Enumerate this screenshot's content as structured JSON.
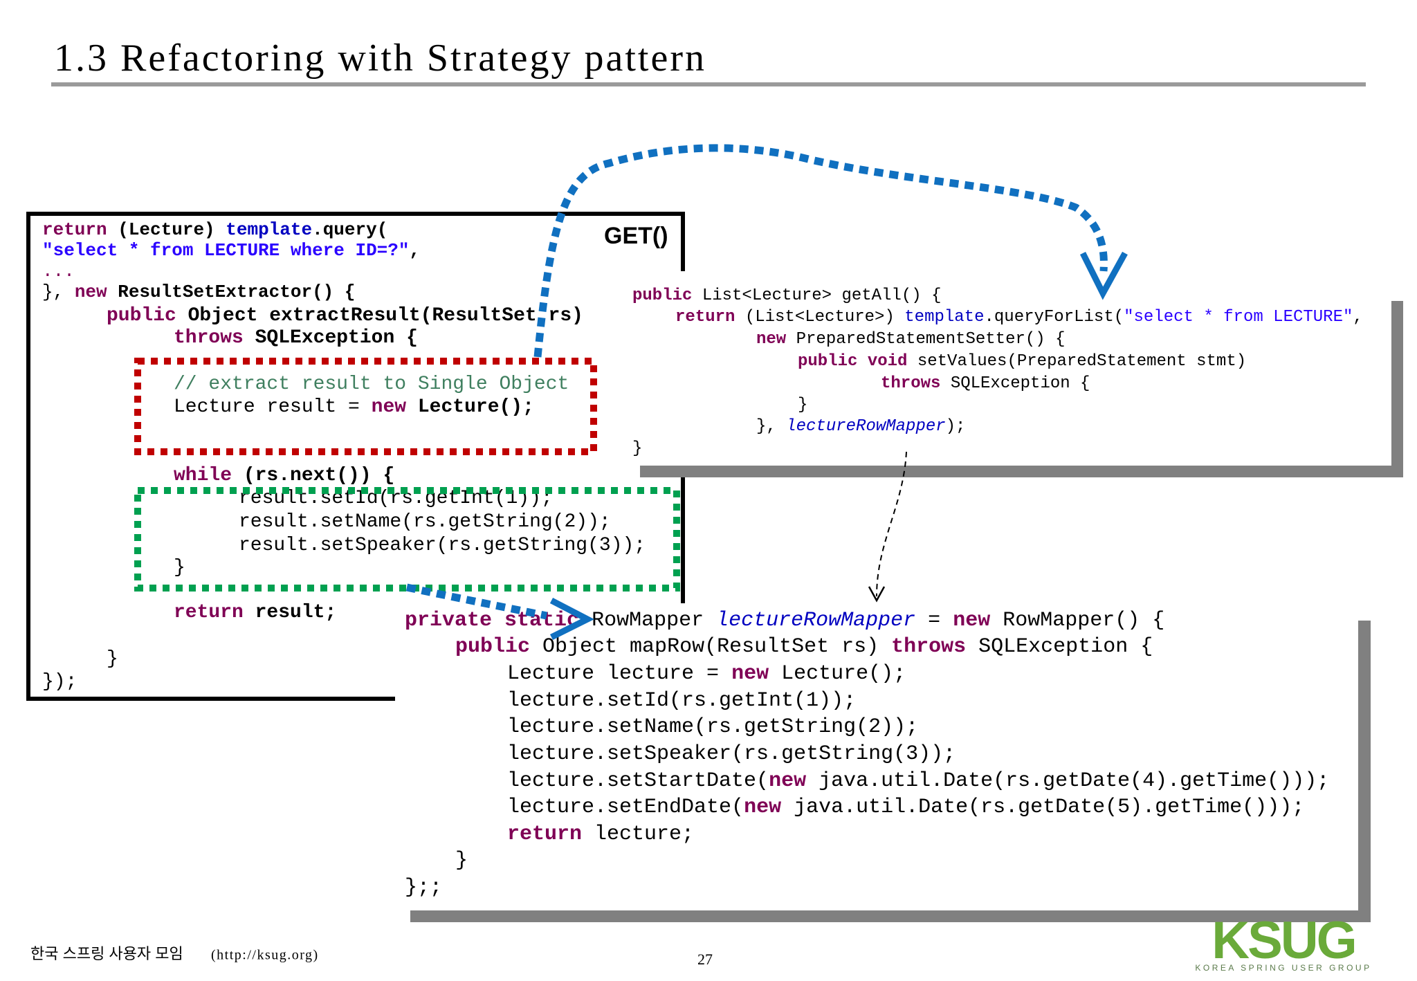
{
  "title": "1.3 Refactoring with Strategy pattern",
  "label": "GET()",
  "code_blocks": [
    {
      "lines": [
        [
          {
            "text": "return",
            "color": "#7f0055",
            "bold": true
          },
          {
            "text": " (Lecture) ",
            "bold": true
          },
          {
            "text": "template",
            "color": "#0000c0",
            "bold": true
          },
          {
            "text": ".query(",
            "bold": true
          }
        ],
        [
          {
            "text": "\"select * from LECTURE where ID=?\"",
            "color": "#2a00ff",
            "bold": true
          },
          {
            "text": ",",
            "bold": true
          }
        ],
        [
          {
            "text": "...",
            "color": "#7f0055"
          }
        ],
        [
          {
            "text": "}, "
          },
          {
            "text": "new",
            "color": "#7f0055",
            "bold": true
          },
          {
            "text": " ResultSetExtractor() {",
            "bold": true
          }
        ],
        [
          {
            "text": "public",
            "color": "#7f0055",
            "bold": true
          },
          {
            "text": " Object extractResult(ResultSet rs)",
            "bold": true
          }
        ],
        [
          {
            "text": "throws",
            "color": "#7f0055",
            "bold": true
          },
          {
            "text": " SQLException {",
            "bold": true
          }
        ],
        [
          {
            "text": "// extract result to Single Object",
            "color": "#3f7f5f"
          }
        ],
        [
          {
            "text": "Lecture result = "
          },
          {
            "text": "new",
            "color": "#7f0055",
            "bold": true
          },
          {
            "text": " Lecture();",
            "bold": true
          }
        ],
        [
          {
            "text": "while",
            "color": "#7f0055",
            "bold": true
          },
          {
            "text": " (rs.next()) {",
            "bold": true
          }
        ],
        [
          {
            "text": "result.setId(rs.getInt(1));"
          }
        ],
        [
          {
            "text": "result.setName(rs.getString(2));"
          }
        ],
        [
          {
            "text": "result.setSpeaker(rs.getString(3));"
          }
        ],
        [
          {
            "text": "}"
          }
        ],
        [
          {
            "text": "return",
            "color": "#7f0055",
            "bold": true
          },
          {
            "text": " result;",
            "bold": true
          }
        ],
        [
          {
            "text": "}"
          }
        ],
        [
          {
            "text": "});"
          }
        ]
      ]
    },
    {
      "lines": [
        [
          {
            "text": "public",
            "color": "#7f0055",
            "bold": true
          },
          {
            "text": " List<Lecture> getAll() {"
          }
        ],
        [
          {
            "text": "return",
            "color": "#7f0055",
            "bold": true
          },
          {
            "text": " (List<Lecture>) "
          },
          {
            "text": "template",
            "color": "#0000c0"
          },
          {
            "text": ".queryForList("
          },
          {
            "text": "\"select * from LECTURE\"",
            "color": "#2a00ff"
          },
          {
            "text": ","
          }
        ],
        [
          {
            "text": "new",
            "color": "#7f0055",
            "bold": true
          },
          {
            "text": " PreparedStatementSetter() {"
          }
        ],
        [
          {
            "text": "public",
            "color": "#7f0055",
            "bold": true
          },
          {
            "text": " "
          },
          {
            "text": "void",
            "color": "#7f0055",
            "bold": true
          },
          {
            "text": " setValues(PreparedStatement stmt)"
          }
        ],
        [
          {
            "text": "throws",
            "color": "#7f0055",
            "bold": true
          },
          {
            "text": " SQLException {"
          }
        ],
        [
          {
            "text": "}"
          }
        ],
        [
          {
            "text": "}, "
          },
          {
            "text": "lectureRowMapper",
            "color": "#0000c0",
            "italic": true
          },
          {
            "text": ");"
          }
        ],
        [
          {
            "text": "}"
          }
        ]
      ]
    },
    {
      "lines": [
        [
          {
            "text": "private",
            "color": "#7f0055",
            "bold": true
          },
          {
            "text": " "
          },
          {
            "text": "static",
            "color": "#7f0055",
            "bold": true
          },
          {
            "text": " RowMapper "
          },
          {
            "text": "lectureRowMapper",
            "color": "#0000c0",
            "italic": true
          },
          {
            "text": " = "
          },
          {
            "text": "new",
            "color": "#7f0055",
            "bold": true
          },
          {
            "text": " RowMapper() {"
          }
        ],
        [
          {
            "text": "public",
            "color": "#7f0055",
            "bold": true
          },
          {
            "text": " Object mapRow(ResultSet rs) "
          },
          {
            "text": "throws",
            "color": "#7f0055",
            "bold": true
          },
          {
            "text": " SQLException {"
          }
        ],
        [
          {
            "text": "Lecture lecture = "
          },
          {
            "text": "new",
            "color": "#7f0055",
            "bold": true
          },
          {
            "text": " Lecture();"
          }
        ],
        [
          {
            "text": "lecture.setId(rs.getInt(1));"
          }
        ],
        [
          {
            "text": "lecture.setName(rs.getString(2));"
          }
        ],
        [
          {
            "text": "lecture.setSpeaker(rs.getString(3));"
          }
        ],
        [
          {
            "text": "lecture.setStartDate("
          },
          {
            "text": "new",
            "color": "#7f0055",
            "bold": true
          },
          {
            "text": " java.util.Date(rs.getDate(4).getTime()));"
          }
        ],
        [
          {
            "text": "lecture.setEndDate("
          },
          {
            "text": "new",
            "color": "#7f0055",
            "bold": true
          },
          {
            "text": " java.util.Date(rs.getDate(5).getTime()));"
          }
        ],
        [
          {
            "text": "return",
            "color": "#7f0055",
            "bold": true
          },
          {
            "text": " lecture;"
          }
        ],
        [
          {
            "text": "}"
          }
        ],
        [
          {
            "text": "};;"
          }
        ]
      ]
    }
  ],
  "footer": {
    "org": "한국 스프링 사용자 모임",
    "url": "(http://ksug.org)",
    "page": 27
  },
  "logo": {
    "name": "KSUG",
    "tagline": "KOREA SPRING USER GROUP"
  }
}
